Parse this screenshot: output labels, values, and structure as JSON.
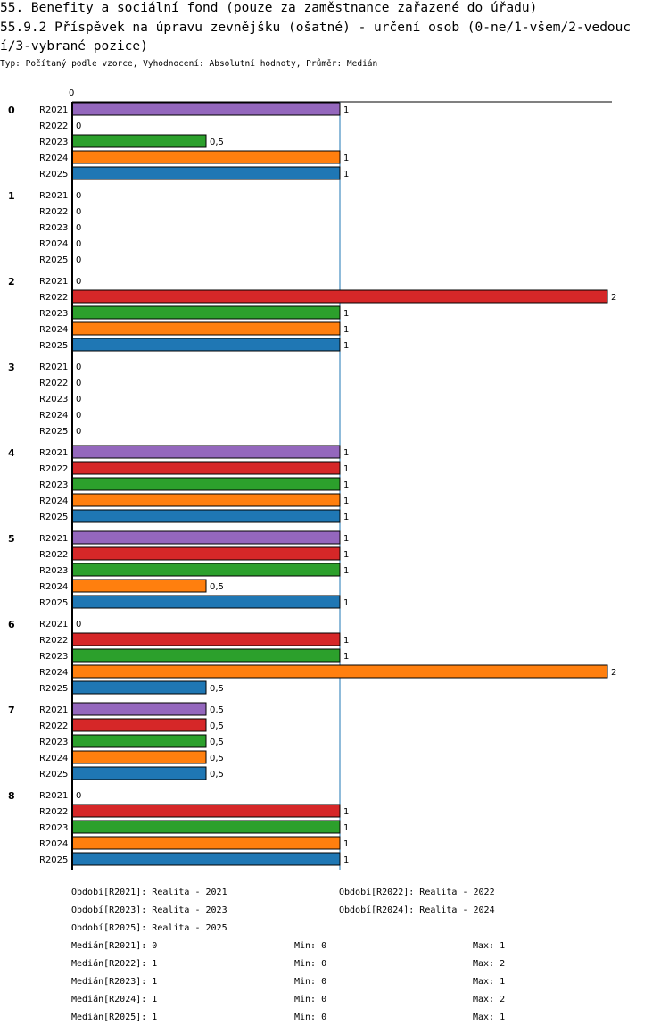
{
  "header": {
    "title_line1": "55. Benefity a sociální fond (pouze za zaměstnance zařazené do úřadu)",
    "title_line2": "55.9.2 Příspěvek na úpravu zevnějšku (ošatné) - určení osob (0-ne/1-všem/2-vedouc",
    "title_line3": "í/3-vybrané pozice)",
    "subtitle": "Typ: Počítaný podle vzorce, Vyhodnocení: Absolutní hodnoty, Průměr: Medián"
  },
  "colors": {
    "R2021": "#9467bd",
    "R2022": "#d62728",
    "R2023": "#2ca02c",
    "R2024": "#ff7f0e",
    "R2025": "#1f77b4",
    "reference_line": "#1f77b4"
  },
  "chart_data": {
    "type": "bar",
    "orientation": "horizontal",
    "x_tick_label": "0",
    "series_names": [
      "R2021",
      "R2022",
      "R2023",
      "R2024",
      "R2025"
    ],
    "xlim": [
      0,
      2
    ],
    "reference_value": 1,
    "groups": [
      {
        "label": "0",
        "values": [
          1,
          0,
          0.5,
          1,
          1
        ]
      },
      {
        "label": "1",
        "values": [
          0,
          0,
          0,
          0,
          0
        ]
      },
      {
        "label": "2",
        "values": [
          0,
          2,
          1,
          1,
          1
        ]
      },
      {
        "label": "3",
        "values": [
          0,
          0,
          0,
          0,
          0
        ]
      },
      {
        "label": "4",
        "values": [
          1,
          1,
          1,
          1,
          1
        ]
      },
      {
        "label": "5",
        "values": [
          1,
          1,
          1,
          0.5,
          1
        ]
      },
      {
        "label": "6",
        "values": [
          0,
          1,
          1,
          2,
          0.5
        ]
      },
      {
        "label": "7",
        "values": [
          0.5,
          0.5,
          0.5,
          0.5,
          0.5
        ]
      },
      {
        "label": "8",
        "values": [
          0,
          1,
          1,
          1,
          1
        ]
      }
    ]
  },
  "legend": {
    "periods": [
      "Období[R2021]: Realita - 2021",
      "Období[R2022]: Realita - 2022",
      "Období[R2023]: Realita - 2023",
      "Období[R2024]: Realita - 2024",
      "Období[R2025]: Realita - 2025"
    ],
    "stats": [
      {
        "median": "Medián[R2021]: 0",
        "min": "Min: 0",
        "max": "Max: 1"
      },
      {
        "median": "Medián[R2022]: 1",
        "min": "Min: 0",
        "max": "Max: 2"
      },
      {
        "median": "Medián[R2023]: 1",
        "min": "Min: 0",
        "max": "Max: 1"
      },
      {
        "median": "Medián[R2024]: 1",
        "min": "Min: 0",
        "max": "Max: 2"
      },
      {
        "median": "Medián[R2025]: 1",
        "min": "Min: 0",
        "max": "Max: 1"
      }
    ]
  }
}
